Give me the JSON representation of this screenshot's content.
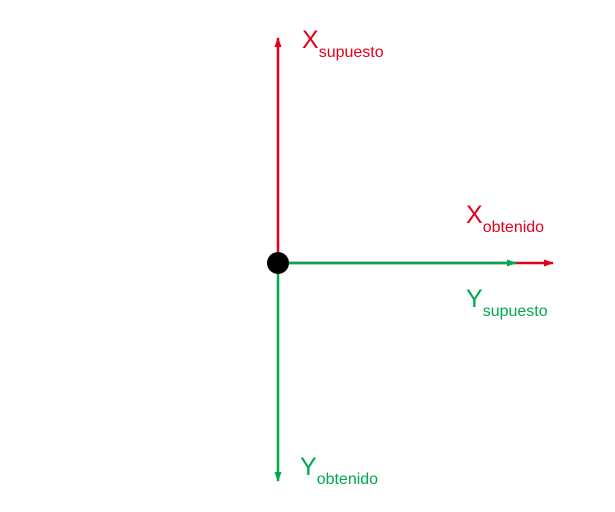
{
  "colors": {
    "supuesto_x": "#e3001b",
    "obtenido_y": "#00a84f",
    "origin": "#000000"
  },
  "labels": {
    "x_supuesto": {
      "main": "X",
      "sub": "supuesto"
    },
    "x_obtenido": {
      "main": "X",
      "sub": "obtenido"
    },
    "y_supuesto": {
      "main": "Y",
      "sub": "supuesto"
    },
    "y_obtenido": {
      "main": "Y",
      "sub": "obtenido"
    }
  }
}
